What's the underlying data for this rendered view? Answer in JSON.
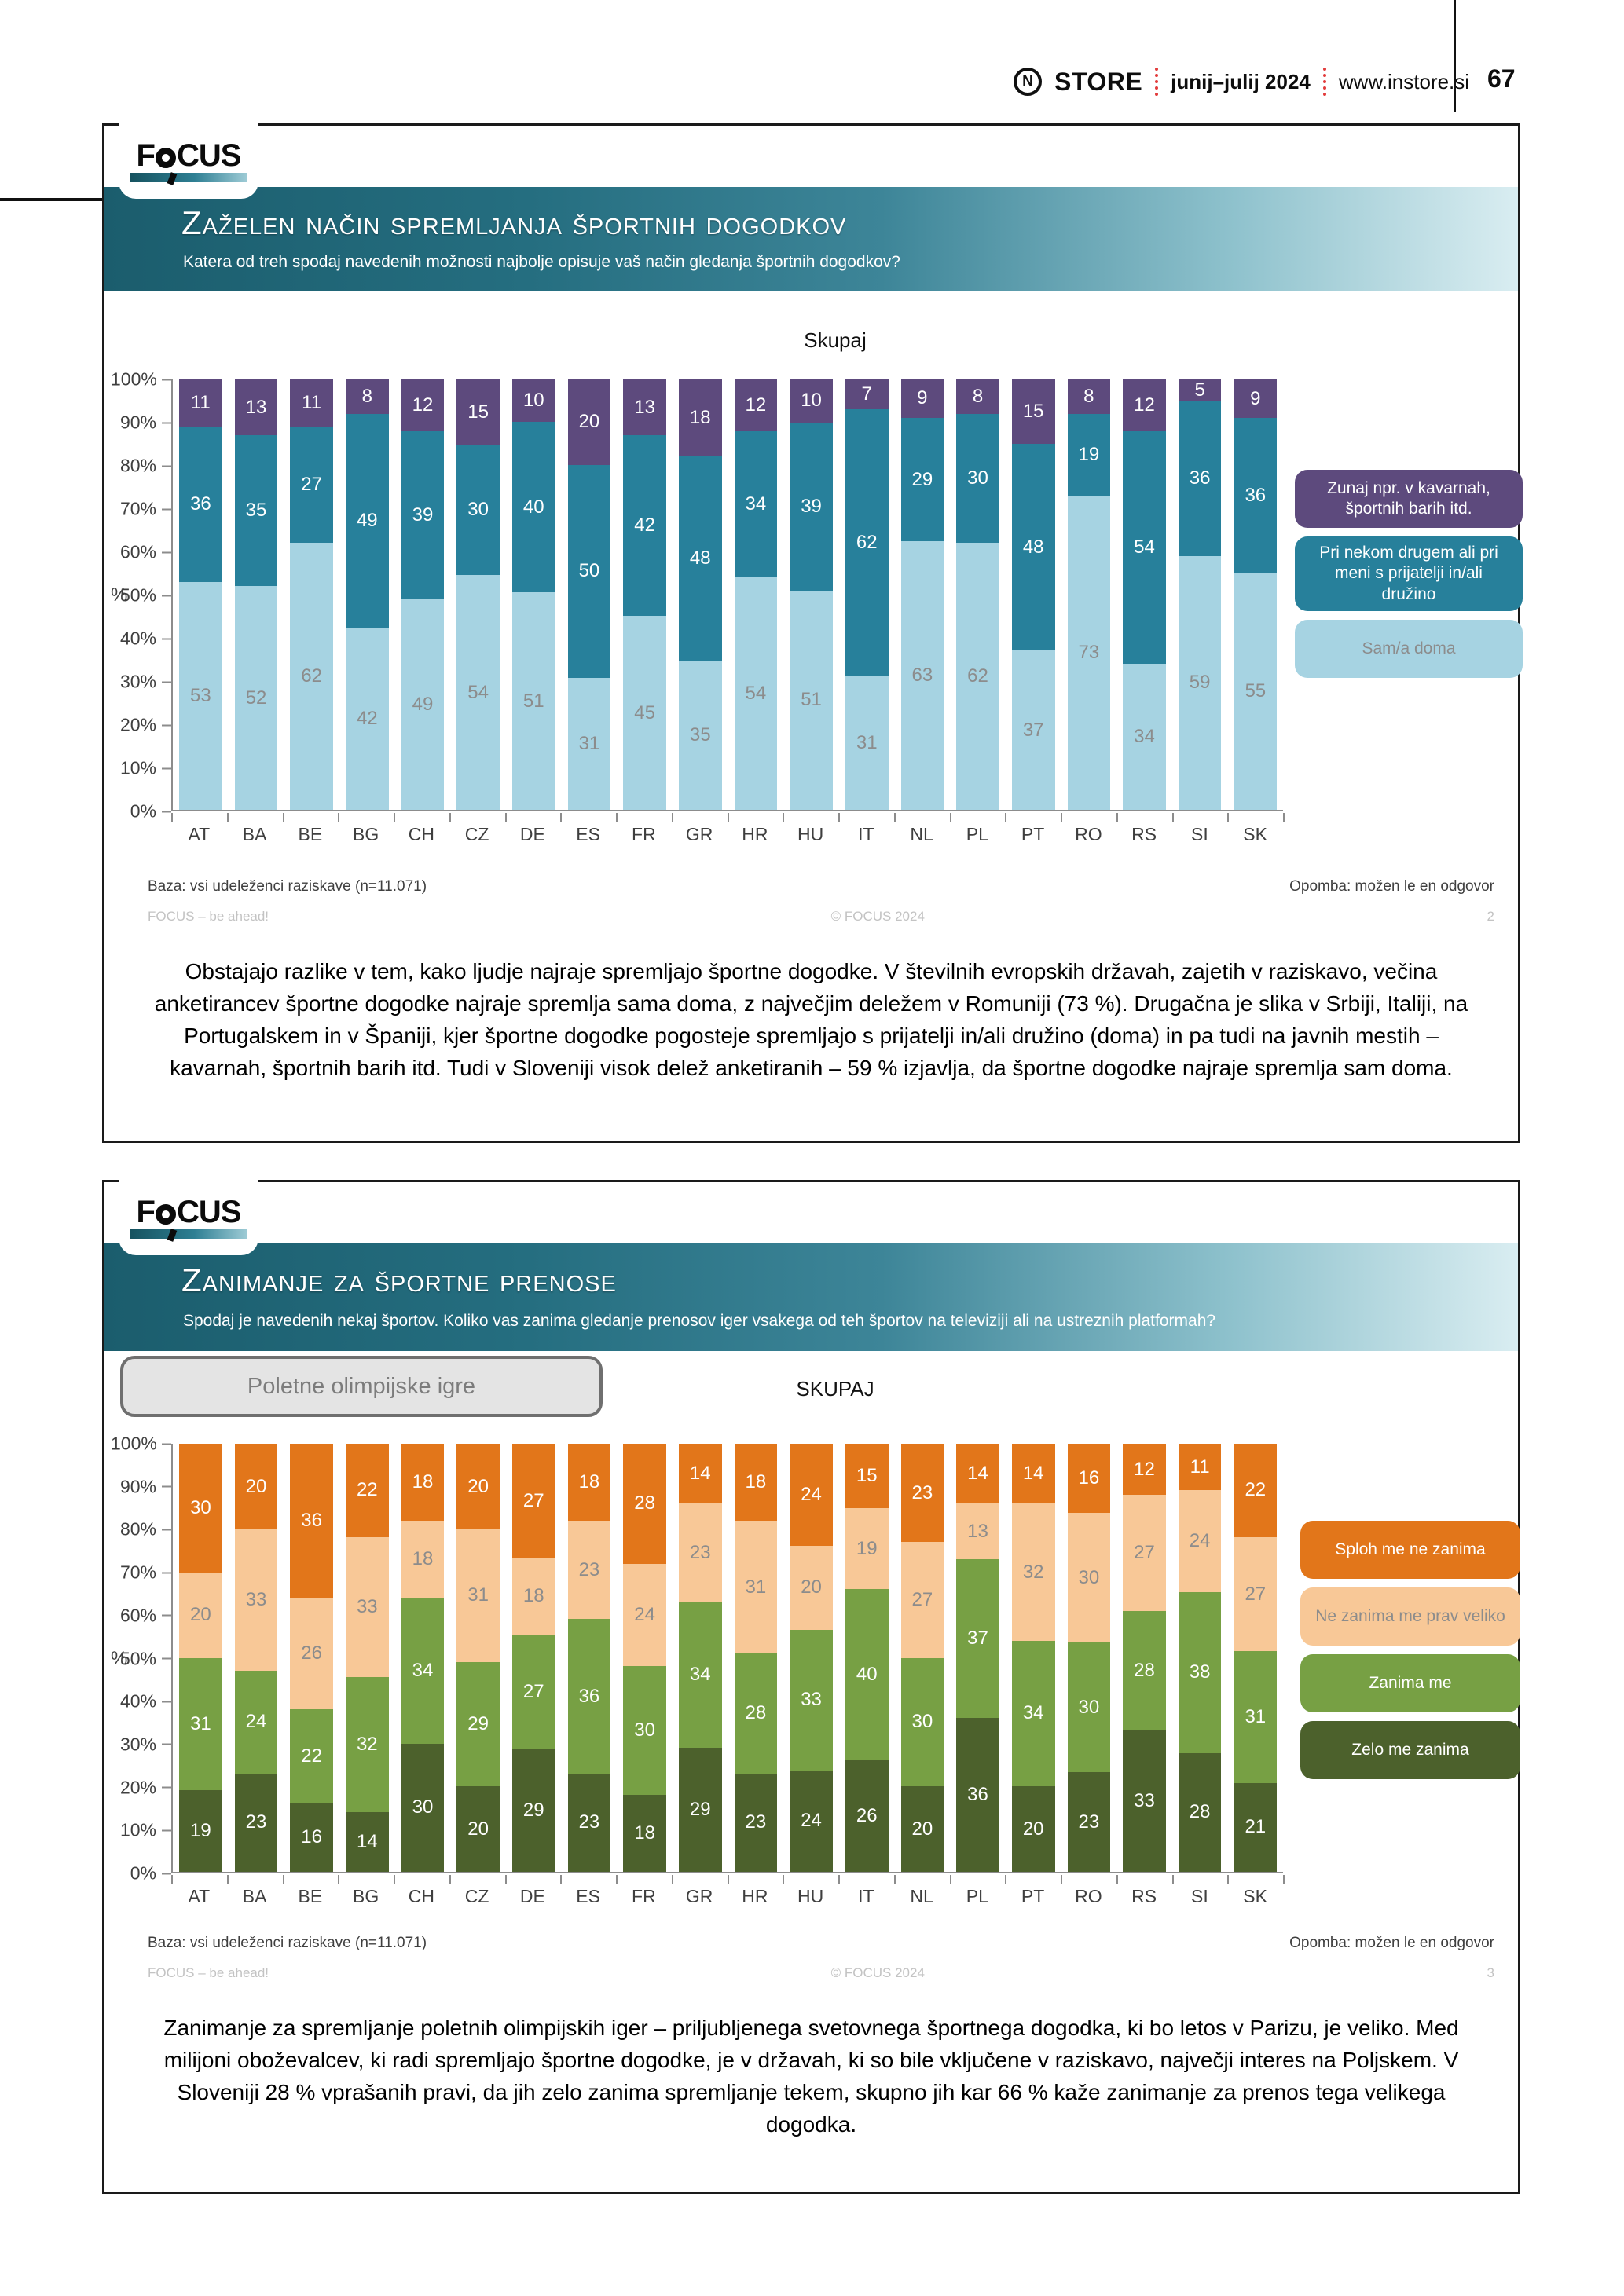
{
  "page_header": {
    "logo_letter": "N",
    "brand": "STORE",
    "issue": "junij–julij 2024",
    "website": "www.instore.si",
    "page_number": "67"
  },
  "panel1": {
    "logo": "F&CUS",
    "title": "Zaželen način spremljanja športnih dogodkov",
    "subtitle": "Katera od treh spodaj navedenih možnosti najbolje opisuje vaš način gledanja športnih dogodkov?",
    "base_note": "Baza: vsi udeleženci raziskave (n=11.071)",
    "note": "Opomba: možen le en odgovor",
    "footer_left": "FOCUS – be ahead!",
    "footer_center": "© FOCUS 2024",
    "slide_number": "2",
    "paragraph": "Obstajajo razlike v tem, kako ljudje najraje spremljajo športne dogodke. V številnih evropskih državah, zajetih v raziskavo, večina anketirancev športne dogodke najraje spremlja sama doma, z največjim deležem v Romuniji (73 %). Drugačna je slika v Srbiji, Italiji, na Portugalskem in v Španiji, kjer športne dogodke pogosteje spremljajo s prijatelji in/ali družino (doma) in pa tudi na javnih mestih – kavarnah, športnih barih itd. Tudi v Sloveniji visok delež anketiranih – 59 % izjavlja, da športne dogodke najraje spremlja sam doma."
  },
  "panel2": {
    "logo": "F&CUS",
    "title": "Zanimanje za športne prenose",
    "subtitle": "Spodaj je navedenih nekaj športov. Koliko vas zanima gledanje prenosov iger vsakega od teh športov na televiziji ali na ustreznih platformah?",
    "sport_button": "Poletne olimpijske igre",
    "base_note": "Baza: vsi udeleženci raziskave (n=11.071)",
    "note": "Opomba: možen le en odgovor",
    "footer_left": "FOCUS – be ahead!",
    "footer_center": "© FOCUS 2024",
    "slide_number": "3",
    "paragraph": "Zanimanje za spremljanje poletnih olimpijskih iger – priljubljenega svetovnega športnega dogodka, ki bo letos v Parizu, je veliko. Med milijoni oboževalcev, ki radi spremljajo športne dogodke, je v državah, ki so bile vključene v raziskavo, največji interes na Poljskem. V Sloveniji 28 % vprašanih pravi, da jih zelo zanima spremljanje tekem, skupno jih kar 66 % kaže zanimanje za prenos tega velikega dogodka."
  },
  "chart_data": [
    {
      "type": "bar",
      "stacked": true,
      "units": "percent",
      "title": "Skupaj",
      "ylabel": "%",
      "ylim": [
        0,
        100
      ],
      "ytick_step": 10,
      "grid": false,
      "legend_position": "right",
      "categories": [
        "AT",
        "BA",
        "BE",
        "BG",
        "CH",
        "CZ",
        "DE",
        "ES",
        "FR",
        "GR",
        "HR",
        "HU",
        "IT",
        "NL",
        "PL",
        "PT",
        "RO",
        "RS",
        "SI",
        "SK"
      ],
      "series": [
        {
          "name": "Sam/a doma",
          "color": "#a6d3e2",
          "label_color": "#8c8c8c",
          "values": [
            53,
            52,
            62,
            42,
            49,
            54,
            51,
            31,
            45,
            35,
            54,
            51,
            31,
            63,
            62,
            37,
            73,
            34,
            59,
            55
          ]
        },
        {
          "name": "Pri nekom drugem ali pri meni s prijatelji in/ali družino",
          "color": "#27809b",
          "label_color": "#ffffff",
          "values": [
            36,
            35,
            27,
            49,
            39,
            30,
            40,
            50,
            42,
            48,
            34,
            39,
            62,
            29,
            30,
            48,
            19,
            54,
            36,
            36
          ]
        },
        {
          "name": "Zunaj npr. v kavarnah, športnih barih itd.",
          "color": "#5d4a7d",
          "label_color": "#ffffff",
          "values": [
            11,
            13,
            11,
            8,
            12,
            15,
            10,
            20,
            13,
            18,
            12,
            10,
            7,
            9,
            8,
            15,
            8,
            12,
            5,
            9
          ]
        }
      ]
    },
    {
      "type": "bar",
      "stacked": true,
      "units": "percent",
      "title": "SKUPAJ",
      "ylabel": "%",
      "ylim": [
        0,
        100
      ],
      "ytick_step": 10,
      "grid": false,
      "legend_position": "right",
      "categories": [
        "AT",
        "BA",
        "BE",
        "BG",
        "CH",
        "CZ",
        "DE",
        "ES",
        "FR",
        "GR",
        "HR",
        "HU",
        "IT",
        "NL",
        "PL",
        "PT",
        "RO",
        "RS",
        "SI",
        "SK"
      ],
      "series": [
        {
          "name": "Zelo me zanima",
          "color": "#4c612c",
          "label_color": "#ffffff",
          "values": [
            19,
            23,
            16,
            14,
            30,
            20,
            29,
            23,
            18,
            29,
            23,
            24,
            26,
            20,
            36,
            20,
            23,
            33,
            28,
            21
          ]
        },
        {
          "name": "Zanima me",
          "color": "#77a044",
          "label_color": "#ffffff",
          "values": [
            31,
            24,
            22,
            32,
            34,
            29,
            27,
            36,
            30,
            34,
            28,
            33,
            40,
            30,
            37,
            34,
            30,
            28,
            38,
            31
          ]
        },
        {
          "name": "Ne zanima me prav veliko",
          "color": "#f8c897",
          "label_color": "#8c8c8c",
          "values": [
            20,
            33,
            26,
            33,
            18,
            31,
            18,
            23,
            24,
            23,
            31,
            20,
            19,
            27,
            13,
            32,
            30,
            27,
            24,
            27
          ]
        },
        {
          "name": "Sploh me ne zanima",
          "color": "#e2761a",
          "label_color": "#ffffff",
          "values": [
            30,
            20,
            36,
            22,
            18,
            20,
            27,
            18,
            28,
            14,
            18,
            24,
            15,
            23,
            14,
            14,
            16,
            12,
            11,
            22
          ]
        }
      ]
    }
  ]
}
